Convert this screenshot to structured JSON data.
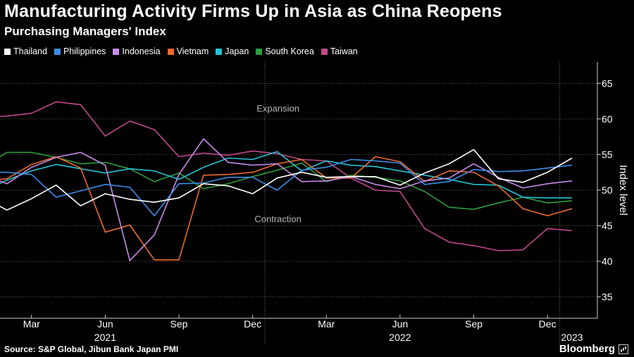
{
  "header": {
    "title": "Manufacturing Activity Firms Up in Asia as China Reopens",
    "subtitle": "Purchasing Managers' Index"
  },
  "footer": {
    "source": "Source: S&P Global, Jibun Bank Japan PMI",
    "brand": "Bloomberg"
  },
  "chart_data": {
    "type": "line",
    "title": "Manufacturing Activity Firms Up in Asia as China Reopens",
    "subtitle": "Purchasing Managers' Index",
    "ylabel": "Index level",
    "ylim": [
      32,
      68
    ],
    "yticks": [
      35,
      40,
      45,
      50,
      55,
      60,
      65
    ],
    "grid": "horizontal",
    "x": [
      "2021-01",
      "2021-02",
      "2021-03",
      "2021-04",
      "2021-05",
      "2021-06",
      "2021-07",
      "2021-08",
      "2021-09",
      "2021-10",
      "2021-11",
      "2021-12",
      "2022-01",
      "2022-02",
      "2022-03",
      "2022-04",
      "2022-05",
      "2022-06",
      "2022-07",
      "2022-08",
      "2022-09",
      "2022-10",
      "2022-11",
      "2022-12",
      "2023-01"
    ],
    "month_ticks": [
      {
        "x": "2021-03",
        "label": "Mar"
      },
      {
        "x": "2021-06",
        "label": "Jun"
      },
      {
        "x": "2021-09",
        "label": "Sep"
      },
      {
        "x": "2021-12",
        "label": "Dec"
      },
      {
        "x": "2022-03",
        "label": "Mar"
      },
      {
        "x": "2022-06",
        "label": "Jun"
      },
      {
        "x": "2022-09",
        "label": "Sep"
      },
      {
        "x": "2022-12",
        "label": "Dec"
      }
    ],
    "year_ticks": [
      {
        "x": "2021-06",
        "label": "2021"
      },
      {
        "x": "2022-06",
        "label": "2022"
      },
      {
        "x": "2023-01",
        "label": "2023"
      }
    ],
    "year_dividers": [
      "2021-12",
      "2022-12"
    ],
    "annotations": [
      {
        "text": "Expansion",
        "x": "2021-12",
        "y": 61.5
      },
      {
        "text": "Contraction",
        "x": "2021-12",
        "y": 46
      }
    ],
    "legend_placement": "top-left",
    "series": [
      {
        "name": "Thailand",
        "color": "#ffffff",
        "values": [
          49.0,
          47.2,
          48.8,
          50.7,
          47.8,
          49.5,
          48.7,
          48.3,
          48.9,
          50.9,
          50.6,
          49.5,
          51.7,
          52.5,
          51.8,
          51.9,
          51.9,
          50.7,
          52.4,
          53.7,
          55.7,
          51.6,
          51.1,
          52.5,
          54.5
        ]
      },
      {
        "name": "Philippines",
        "color": "#3b8eea",
        "values": [
          52.5,
          52.5,
          52.2,
          49.0,
          49.9,
          50.8,
          50.4,
          46.4,
          50.9,
          51.0,
          51.8,
          51.8,
          50.0,
          52.8,
          53.2,
          54.3,
          54.1,
          53.8,
          50.8,
          51.2,
          52.9,
          52.6,
          52.7,
          53.1,
          53.5
        ]
      },
      {
        "name": "Indonesia",
        "color": "#c98ae8",
        "values": [
          52.2,
          50.9,
          53.2,
          54.6,
          55.3,
          53.5,
          40.1,
          43.7,
          52.2,
          57.2,
          53.9,
          53.5,
          53.7,
          51.2,
          51.3,
          51.9,
          50.8,
          50.2,
          51.3,
          51.7,
          53.7,
          51.8,
          50.3,
          50.9,
          51.3
        ]
      },
      {
        "name": "Vietnam",
        "color": "#ee6a2e",
        "values": [
          51.3,
          51.6,
          53.6,
          54.7,
          53.1,
          44.1,
          45.1,
          40.2,
          40.2,
          52.1,
          52.2,
          52.5,
          53.7,
          54.3,
          51.7,
          51.7,
          54.7,
          54.0,
          51.2,
          52.7,
          52.5,
          50.6,
          47.4,
          46.4,
          47.4
        ]
      },
      {
        "name": "Japan",
        "color": "#26c4d6",
        "values": [
          49.8,
          51.4,
          52.7,
          53.6,
          53.0,
          52.4,
          53.0,
          52.7,
          51.5,
          53.2,
          54.5,
          54.3,
          55.4,
          52.7,
          54.1,
          53.5,
          53.3,
          52.7,
          52.1,
          51.5,
          50.8,
          50.7,
          49.0,
          48.9,
          48.9
        ]
      },
      {
        "name": "South Korea",
        "color": "#2e9e3e",
        "values": [
          53.2,
          55.3,
          55.3,
          54.6,
          53.7,
          53.9,
          53.0,
          51.2,
          52.4,
          50.2,
          50.9,
          51.9,
          52.8,
          53.8,
          51.2,
          52.1,
          51.8,
          51.3,
          49.8,
          47.6,
          47.3,
          48.2,
          49.0,
          48.2,
          48.5
        ]
      },
      {
        "name": "Taiwan",
        "color": "#c0488c",
        "values": [
          60.2,
          60.4,
          60.8,
          62.4,
          62.0,
          57.6,
          59.7,
          58.5,
          54.7,
          55.2,
          54.9,
          55.5,
          55.1,
          54.3,
          54.1,
          51.7,
          50.0,
          49.8,
          44.6,
          42.7,
          42.2,
          41.5,
          41.6,
          44.6,
          44.3
        ]
      }
    ]
  }
}
